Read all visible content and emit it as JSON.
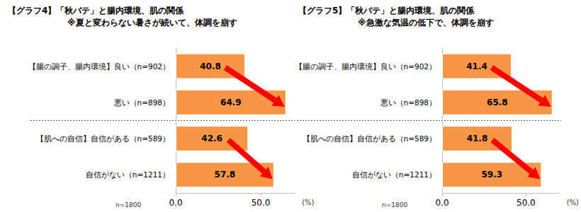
{
  "chart_data": [
    {
      "type": "bar",
      "orientation": "horizontal",
      "title": "【グラフ4】「秋バテ」と腸内環境、肌の関係",
      "subtitle": "※夏と変わらない暑さが続いて、体調を崩す",
      "categories": [
        "【腸の調子、腸内環境】良い（n=902）",
        "悪い（n=898）",
        "【肌への自信】自信がある（n=589）",
        "自信がない（n=1211）"
      ],
      "values": [
        40.8,
        64.9,
        42.6,
        57.8
      ],
      "color": "#F79646",
      "xlim": [
        0,
        70
      ],
      "xticks": [
        {
          "value": 0,
          "label": "0.0"
        },
        {
          "value": 50,
          "label": "50.0"
        }
      ],
      "x_label": "(%)",
      "annotations": [
        "n=1800"
      ],
      "data_labels": true,
      "grid": false
    },
    {
      "type": "bar",
      "orientation": "horizontal",
      "title": "【グラフ5】「秋バテ」と腸内環境、肌の関係",
      "subtitle": "※急激な気温の低下で、体調を崩す",
      "categories": [
        "【腸の調子、腸内環境】良い（n=902）",
        "悪い（n=898）",
        "【肌への自信】自信がある（n=589）",
        "自信がない（n=1211）"
      ],
      "values": [
        41.4,
        65.8,
        41.8,
        59.3
      ],
      "color": "#F79646",
      "xlim": [
        0,
        70
      ],
      "xticks": [
        {
          "value": 0,
          "label": "0.0"
        },
        {
          "value": 50,
          "label": "50.0"
        }
      ],
      "x_label": "(%)",
      "annotations": [
        "n=1800"
      ],
      "data_labels": true,
      "grid": false
    }
  ]
}
